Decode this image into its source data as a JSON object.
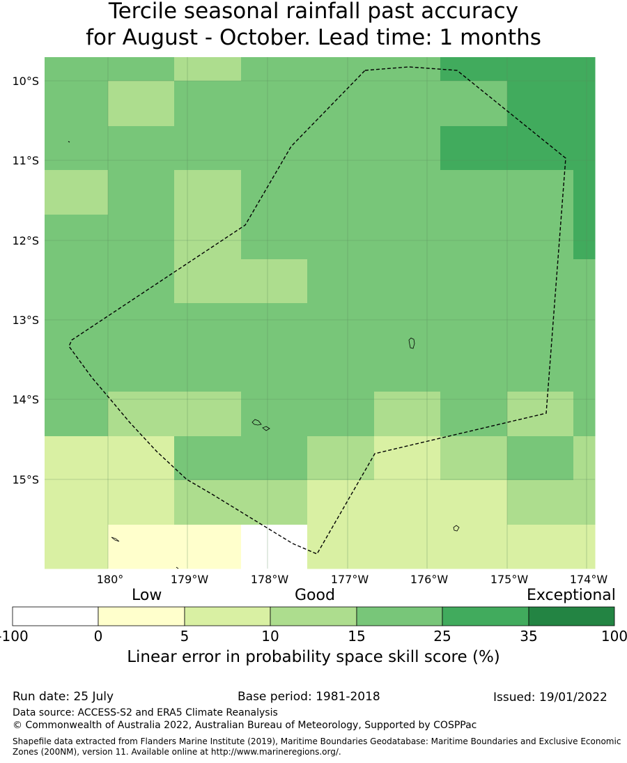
{
  "title": {
    "line1": "Tercile seasonal rainfall past accuracy",
    "line2": "for August - October. Lead time: 1 months"
  },
  "map": {
    "lat_labels": [
      "10°S",
      "11°S",
      "12°S",
      "13°S",
      "14°S",
      "15°S"
    ],
    "lon_labels": [
      "180°",
      "179°W",
      "178°W",
      "177°W",
      "176°W",
      "175°W",
      "174°W"
    ],
    "colors": {
      "c0": "#ffffff",
      "c1": "#ffffcc",
      "c2": "#d9f0a3",
      "c3": "#addd8e",
      "c4": "#78c679",
      "c5": "#41ab5d",
      "c6": "#238443"
    },
    "grid_rows": [
      [
        4,
        4,
        3,
        4,
        4,
        4,
        5,
        5,
        5
      ],
      [
        4,
        3,
        4,
        4,
        4,
        4,
        4,
        5,
        5
      ],
      [
        4,
        4,
        4,
        4,
        4,
        4,
        5,
        5,
        5
      ],
      [
        3,
        4,
        3,
        4,
        4,
        4,
        4,
        4,
        5
      ],
      [
        4,
        4,
        3,
        4,
        4,
        4,
        4,
        4,
        5
      ],
      [
        4,
        4,
        3,
        3,
        4,
        4,
        4,
        4,
        4
      ],
      [
        4,
        4,
        4,
        4,
        4,
        4,
        4,
        4,
        4
      ],
      [
        4,
        4,
        4,
        4,
        4,
        4,
        4,
        4,
        4
      ],
      [
        4,
        3,
        3,
        4,
        4,
        3,
        4,
        3,
        4
      ],
      [
        2,
        2,
        4,
        4,
        3,
        2,
        3,
        4,
        3
      ],
      [
        2,
        2,
        3,
        3,
        2,
        2,
        2,
        3,
        3
      ],
      [
        2,
        1,
        1,
        0,
        2,
        2,
        2,
        2,
        2
      ]
    ]
  },
  "colorbar": {
    "words": [
      "Low",
      "Good",
      "Exceptional"
    ],
    "ticks": [
      "-100",
      "0",
      "5",
      "10",
      "15",
      "25",
      "35",
      "100"
    ],
    "colors": [
      "#ffffff",
      "#ffffcc",
      "#d9f0a3",
      "#addd8e",
      "#78c679",
      "#41ab5d",
      "#238443"
    ],
    "label": "Linear error in probability space skill score (%)"
  },
  "info": {
    "run_date": "Run date: 25 July",
    "base_period": "Base period: 1981-2018",
    "issued": "Issued: 19/01/2022",
    "data_source": "Data source: ACCESS-S2 and ERA5 Climate Reanalysis",
    "copyright": "© Commonwealth of Australia 2022, Australian Bureau of Meteorology, Supported by COSPPac",
    "shapefile": "Shapefile data extracted from Flanders Marine Institute (2019), Maritime Boundaries Geodatabase: Maritime Boundaries and Exclusive Economic Zones (200NM), version 11. Available online at http://www.marineregions.org/."
  }
}
